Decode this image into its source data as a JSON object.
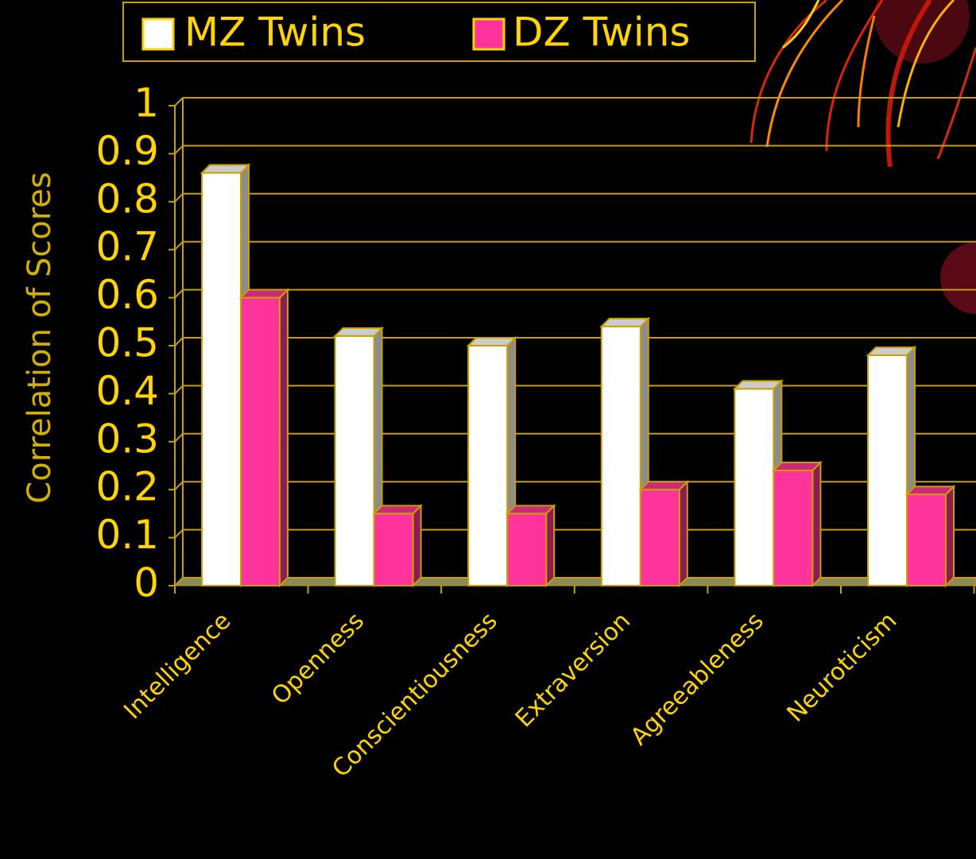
{
  "chart_data": {
    "type": "bar3d",
    "y_label": "Correlation of Scores",
    "categories": [
      "Intelligence",
      "Openness",
      "Conscientiousness",
      "Extraversion",
      "Agreeableness",
      "Neuroticism"
    ],
    "series": [
      {
        "name": "MZ Twins",
        "color": "#ffffff",
        "values": [
          0.86,
          0.52,
          0.5,
          0.54,
          0.41,
          0.48
        ]
      },
      {
        "name": "DZ Twins",
        "color": "#ff3399",
        "values": [
          0.6,
          0.15,
          0.15,
          0.2,
          0.24,
          0.19
        ]
      }
    ],
    "ylim": [
      0,
      1
    ],
    "yticks": [
      0,
      0.1,
      0.2,
      0.3,
      0.4,
      0.5,
      0.6,
      0.7,
      0.8,
      0.9,
      1
    ],
    "grid": true,
    "legend": "top"
  }
}
